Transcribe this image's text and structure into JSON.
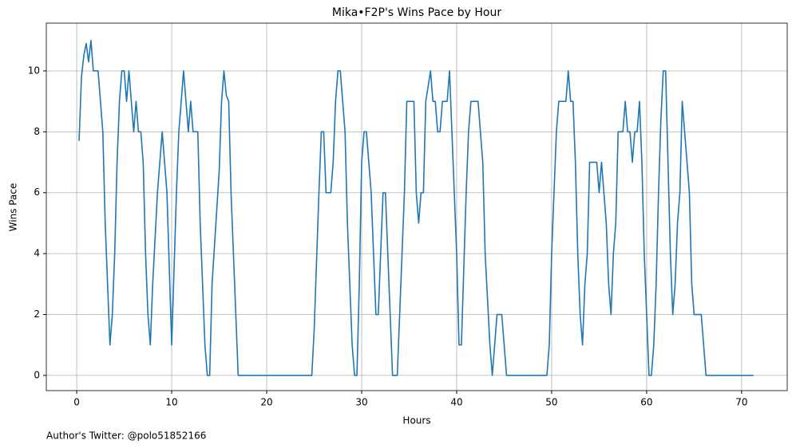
{
  "chart_data": {
    "type": "line",
    "title": "Mika•F2P's Wins Pace by Hour",
    "x_label": "Hours",
    "y_label": "Wins Pace",
    "footnote": "Author's Twitter: @polo51852166",
    "xlim": [
      -3.2,
      74.8
    ],
    "ylim": [
      -0.5,
      11.57
    ],
    "xticks": [
      0,
      10,
      20,
      30,
      40,
      50,
      60,
      70
    ],
    "yticks": [
      0,
      2,
      4,
      6,
      8,
      10
    ],
    "grid": true,
    "series": [
      {
        "color": "#1f77b4",
        "x": [
          0.25,
          0.5,
          0.75,
          1.0,
          1.25,
          1.5,
          1.75,
          2.25,
          2.5,
          2.75,
          3.0,
          3.25,
          3.5,
          3.75,
          4.0,
          4.25,
          4.5,
          4.75,
          5.0,
          5.25,
          5.5,
          5.75,
          6.0,
          6.25,
          6.5,
          6.75,
          7.0,
          7.25,
          7.5,
          7.75,
          8.0,
          8.5,
          9.0,
          9.5,
          10.0,
          10.5,
          10.75,
          11.25,
          11.75,
          12.0,
          12.25,
          12.75,
          13.0,
          13.5,
          13.75,
          14.0,
          14.25,
          15.0,
          15.25,
          15.5,
          15.75,
          16.0,
          16.25,
          16.75,
          17.0,
          24.75,
          25.0,
          25.5,
          25.75,
          26.0,
          26.25,
          26.75,
          27.0,
          27.25,
          27.5,
          27.75,
          28.0,
          28.25,
          28.5,
          28.75,
          29.0,
          29.25,
          29.5,
          29.75,
          30.0,
          30.25,
          30.5,
          30.75,
          31.0,
          31.25,
          31.5,
          31.75,
          32.0,
          32.25,
          32.5,
          32.75,
          33.0,
          33.25,
          33.75,
          34.0,
          34.5,
          34.75,
          35.5,
          35.75,
          36.0,
          36.25,
          36.5,
          36.75,
          37.25,
          37.5,
          37.75,
          38.0,
          38.25,
          38.5,
          39.0,
          39.25,
          39.5,
          40.0,
          40.25,
          40.5,
          40.75,
          41.0,
          41.25,
          41.5,
          42.25,
          42.5,
          42.75,
          43.0,
          43.5,
          43.75,
          44.0,
          44.25,
          44.75,
          45.0,
          45.25,
          49.5,
          49.75,
          50.0,
          50.5,
          50.75,
          51.5,
          51.75,
          52.0,
          52.25,
          52.5,
          52.75,
          53.0,
          53.25,
          53.5,
          53.75,
          54.0,
          54.75,
          55.0,
          55.25,
          55.75,
          56.0,
          56.25,
          56.5,
          56.75,
          57.0,
          57.5,
          57.75,
          58.0,
          58.25,
          58.5,
          58.75,
          59.0,
          59.25,
          59.5,
          59.75,
          60.0,
          60.25,
          60.5,
          60.75,
          61.0,
          61.25,
          61.5,
          61.75,
          62.0,
          62.25,
          62.5,
          62.75,
          63.0,
          63.25,
          63.5,
          63.75,
          64.0,
          64.5,
          64.75,
          65.0,
          65.75,
          66.0,
          66.25,
          71.25
        ],
        "values": [
          7.7,
          9.8,
          10.5,
          10.9,
          10.3,
          11,
          10,
          10,
          9,
          8,
          5,
          3,
          1,
          2,
          4,
          7,
          9,
          10,
          10,
          9,
          10,
          9,
          8,
          9,
          8,
          8,
          7,
          4,
          2,
          1,
          3,
          6,
          8,
          6,
          1,
          6,
          8,
          10,
          8,
          9,
          8,
          8,
          5,
          1,
          0,
          0,
          3,
          6.7,
          9,
          10,
          9.2,
          9,
          6,
          2,
          0,
          0,
          1.5,
          6,
          8,
          8,
          6,
          6,
          7,
          9,
          10,
          10,
          9,
          8,
          5,
          3,
          1,
          0,
          0,
          3,
          7,
          8,
          8,
          7,
          6,
          4,
          2,
          2,
          4,
          6,
          6,
          4,
          2,
          0,
          0,
          2,
          6,
          9,
          9,
          6,
          5,
          6,
          6,
          9,
          10,
          9,
          9,
          8,
          8,
          9,
          9,
          10,
          8,
          4,
          1,
          1,
          3.5,
          6,
          8,
          9,
          9,
          8,
          7,
          4,
          1,
          0,
          1,
          2,
          2,
          1,
          0,
          0,
          1,
          4,
          8,
          9,
          9,
          10,
          9,
          9,
          7,
          4,
          2,
          1,
          3,
          4,
          7,
          7,
          6,
          7,
          5,
          3,
          2,
          4,
          5,
          8,
          8,
          9,
          8,
          8,
          7,
          8,
          8,
          9,
          7,
          4,
          2,
          0,
          0,
          1,
          3,
          6,
          8.4,
          10,
          10,
          7,
          4,
          2,
          3,
          5,
          6,
          9,
          8,
          6,
          3,
          2,
          2,
          1,
          0,
          0
        ]
      }
    ]
  }
}
